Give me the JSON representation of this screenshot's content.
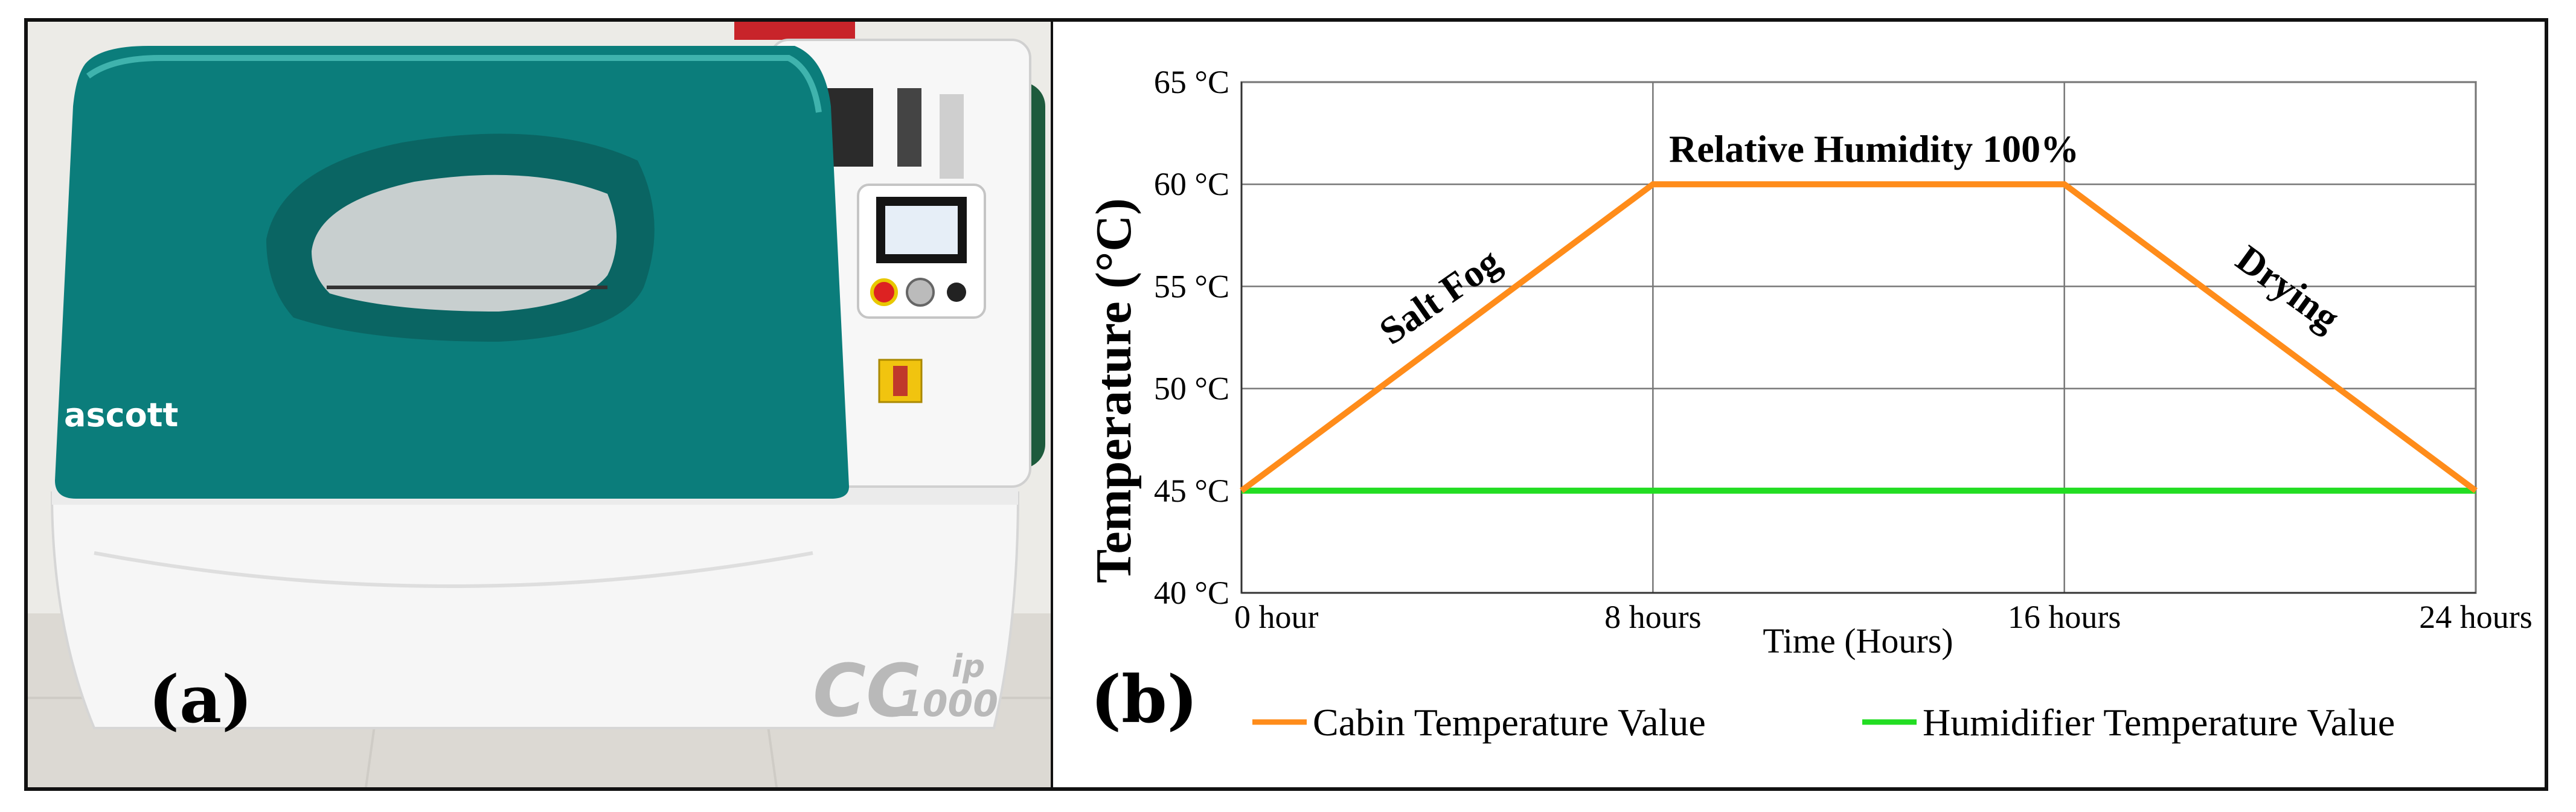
{
  "figure": {
    "panel_a_label": "(a)",
    "panel_b_label": "(b)"
  },
  "photo": {
    "brand_logo": "ascott",
    "model_main": "CC",
    "model_sub": "1000",
    "model_suffix": "ip",
    "cabinet_lid_color": "#0b7d7b",
    "cabinet_body_color": "#f4f4f4"
  },
  "chart_data": {
    "type": "line",
    "title": "",
    "xlabel": "Time (Hours)",
    "ylabel": "Temperature (°C)",
    "x_ticks": [
      "0 hour",
      "8 hours",
      "16 hours",
      "24 hours"
    ],
    "x_tick_values": [
      0,
      8,
      16,
      24
    ],
    "y_ticks": [
      "40 °C",
      "45 °C",
      "50 °C",
      "55 °C",
      "60 °C",
      "65 °C"
    ],
    "y_tick_values": [
      40,
      45,
      50,
      55,
      60,
      65
    ],
    "xlim": [
      0,
      24
    ],
    "ylim": [
      40,
      65
    ],
    "grid": true,
    "legend_position": "bottom",
    "series": [
      {
        "name": "Cabin Temperature Value",
        "color": "#ff8c1a",
        "x": [
          0,
          8,
          16,
          24
        ],
        "y": [
          45,
          60,
          60,
          45
        ]
      },
      {
        "name": "Humidifier Temperature Value",
        "color": "#22dd22",
        "x": [
          0,
          24
        ],
        "y": [
          45,
          45
        ]
      }
    ],
    "annotations": [
      {
        "text": "Salt Fog",
        "x": 4.0,
        "y": 54.0,
        "rotate": -35
      },
      {
        "text": "Relative Humidity 100%",
        "x": 12.3,
        "y": 61.1,
        "rotate": 0
      },
      {
        "text": "Drying",
        "x": 20.2,
        "y": 54.4,
        "rotate": 36
      }
    ]
  }
}
